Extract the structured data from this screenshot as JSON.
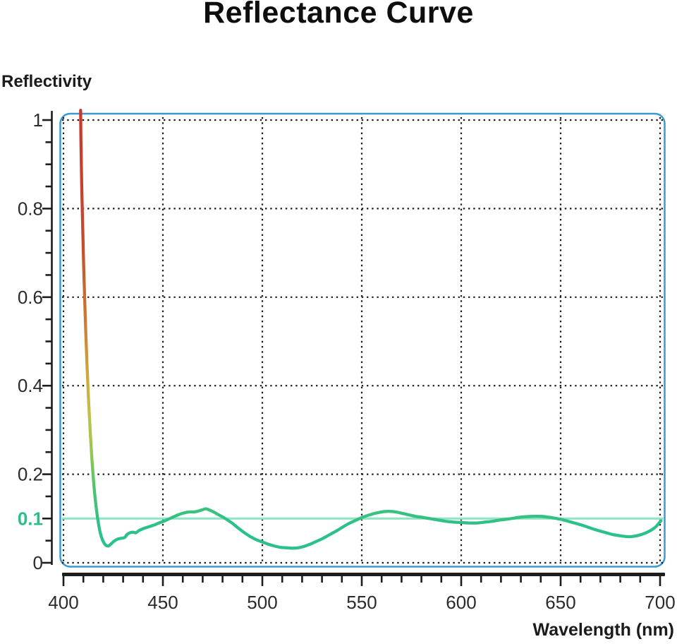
{
  "chart_data": {
    "type": "line",
    "title": "Reflectance Curve",
    "xlabel": "Wavelength (nm)",
    "ylabel": "Reflectivity",
    "xlim": [
      400,
      700
    ],
    "ylim": [
      0,
      1
    ],
    "grid": "dotted",
    "legend": "none",
    "x_major_ticks": [
      400,
      450,
      500,
      550,
      600,
      650,
      700
    ],
    "x_minor_step": 10,
    "y_labeled_ticks": [
      0,
      0.1,
      0.2,
      0.4,
      0.6,
      0.8,
      1
    ],
    "y_minor_step": 0.05,
    "y_gridline_values": [
      0,
      0.2,
      0.4,
      0.6,
      0.8,
      1
    ],
    "reference_line": {
      "y": 0.1,
      "label": "0.1",
      "color": "#92e4c6",
      "label_color": "#29bf8c"
    },
    "colors": {
      "plot_border": "#3a99d0",
      "axis": "#1d1d1d",
      "grid_dots": "#1d1d1d",
      "curve_green": "#2cc08c",
      "curve_red": "#c9372b",
      "title_text": "#0e0e0e",
      "tick_text": "#2b2b2b"
    },
    "series": [
      {
        "name": "reflectance",
        "gradient": {
          "top_value": 1.022,
          "bottom_value": 0.033,
          "stops": [
            {
              "offset": 0.0,
              "color": "#c9372b"
            },
            {
              "offset": 0.3,
              "color": "#c44b2e"
            },
            {
              "offset": 0.48,
              "color": "#cb7a33"
            },
            {
              "offset": 0.6,
              "color": "#cfa63e"
            },
            {
              "offset": 0.7,
              "color": "#bfc247"
            },
            {
              "offset": 0.78,
              "color": "#93c84c"
            },
            {
              "offset": 0.86,
              "color": "#4fc56c"
            },
            {
              "offset": 0.95,
              "color": "#2cc08a"
            },
            {
              "offset": 1.0,
              "color": "#2cc08c"
            }
          ]
        },
        "points": [
          [
            408.6,
            1.022
          ],
          [
            408.8,
            0.95
          ],
          [
            409.2,
            0.85
          ],
          [
            409.7,
            0.75
          ],
          [
            410.3,
            0.65
          ],
          [
            411.0,
            0.55
          ],
          [
            411.8,
            0.45
          ],
          [
            412.6,
            0.37
          ],
          [
            413.4,
            0.3
          ],
          [
            414.3,
            0.235
          ],
          [
            415.2,
            0.18
          ],
          [
            416.2,
            0.135
          ],
          [
            417.2,
            0.1
          ],
          [
            418.3,
            0.072
          ],
          [
            419.5,
            0.053
          ],
          [
            421,
            0.041
          ],
          [
            422.5,
            0.038
          ],
          [
            424,
            0.043
          ],
          [
            425.5,
            0.049
          ],
          [
            427,
            0.053
          ],
          [
            428.5,
            0.055
          ],
          [
            430,
            0.056
          ],
          [
            431,
            0.058
          ],
          [
            432,
            0.064
          ],
          [
            433.5,
            0.068
          ],
          [
            435,
            0.069
          ],
          [
            436.5,
            0.068
          ],
          [
            438,
            0.073
          ],
          [
            440,
            0.077
          ],
          [
            442,
            0.08
          ],
          [
            444,
            0.083
          ],
          [
            446,
            0.086
          ],
          [
            448,
            0.09
          ],
          [
            450,
            0.093
          ],
          [
            452,
            0.097
          ],
          [
            454,
            0.101
          ],
          [
            456,
            0.105
          ],
          [
            458,
            0.109
          ],
          [
            460,
            0.112
          ],
          [
            462,
            0.114
          ],
          [
            464,
            0.115
          ],
          [
            466,
            0.115
          ],
          [
            468,
            0.117
          ],
          [
            470,
            0.12
          ],
          [
            471.5,
            0.122
          ],
          [
            473,
            0.12
          ],
          [
            475,
            0.116
          ],
          [
            477,
            0.111
          ],
          [
            479,
            0.106
          ],
          [
            481,
            0.101
          ],
          [
            483,
            0.095
          ],
          [
            485,
            0.089
          ],
          [
            488,
            0.078
          ],
          [
            491,
            0.068
          ],
          [
            494,
            0.059
          ],
          [
            497,
            0.052
          ],
          [
            500,
            0.047
          ],
          [
            503,
            0.042
          ],
          [
            506,
            0.038
          ],
          [
            509,
            0.035
          ],
          [
            512,
            0.034
          ],
          [
            515,
            0.033
          ],
          [
            518,
            0.034
          ],
          [
            521,
            0.037
          ],
          [
            524,
            0.042
          ],
          [
            527,
            0.048
          ],
          [
            530,
            0.054
          ],
          [
            534,
            0.064
          ],
          [
            538,
            0.074
          ],
          [
            542,
            0.085
          ],
          [
            546,
            0.094
          ],
          [
            550,
            0.102
          ],
          [
            553,
            0.107
          ],
          [
            556,
            0.111
          ],
          [
            559,
            0.114
          ],
          [
            562,
            0.116
          ],
          [
            565,
            0.116
          ],
          [
            568,
            0.114
          ],
          [
            571,
            0.111
          ],
          [
            574,
            0.108
          ],
          [
            577,
            0.105
          ],
          [
            580,
            0.103
          ],
          [
            584,
            0.1
          ],
          [
            588,
            0.097
          ],
          [
            592,
            0.094
          ],
          [
            596,
            0.092
          ],
          [
            600,
            0.091
          ],
          [
            604,
            0.09
          ],
          [
            608,
            0.09
          ],
          [
            612,
            0.092
          ],
          [
            616,
            0.094
          ],
          [
            620,
            0.097
          ],
          [
            624,
            0.099
          ],
          [
            628,
            0.102
          ],
          [
            632,
            0.104
          ],
          [
            636,
            0.105
          ],
          [
            640,
            0.105
          ],
          [
            644,
            0.103
          ],
          [
            648,
            0.1
          ],
          [
            652,
            0.096
          ],
          [
            656,
            0.091
          ],
          [
            660,
            0.086
          ],
          [
            664,
            0.08
          ],
          [
            668,
            0.074
          ],
          [
            672,
            0.069
          ],
          [
            676,
            0.064
          ],
          [
            680,
            0.061
          ],
          [
            684,
            0.059
          ],
          [
            687,
            0.06
          ],
          [
            690,
            0.063
          ],
          [
            693,
            0.068
          ],
          [
            696,
            0.075
          ],
          [
            698,
            0.082
          ],
          [
            699.5,
            0.09
          ],
          [
            700.5,
            0.095
          ]
        ]
      }
    ]
  }
}
